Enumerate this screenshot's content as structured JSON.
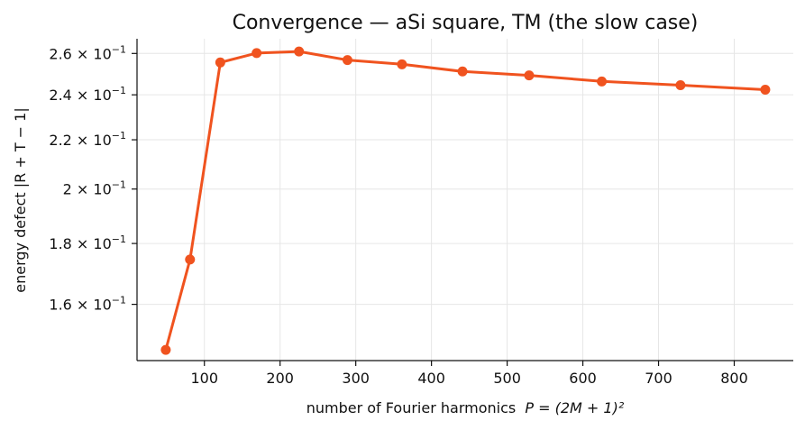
{
  "chart_data": {
    "type": "line",
    "title": "Convergence — aSi square, TM (the slow case)",
    "xlabel_prefix": "number of Fourier harmonics  ",
    "xlabel_math": "P = (2M + 1)²",
    "ylabel": "energy defect  |R + T − 1|",
    "y_scale": "log",
    "grid": true,
    "xlim": [
      11,
      878
    ],
    "ylim": [
      0.1435,
      0.2675
    ],
    "x_ticks": [
      100,
      200,
      300,
      400,
      500,
      600,
      700,
      800
    ],
    "x_tick_labels": [
      "100",
      "200",
      "300",
      "400",
      "500",
      "600",
      "700",
      "800"
    ],
    "y_ticks": [
      0.16,
      0.18,
      0.2,
      0.22,
      0.24,
      0.26
    ],
    "y_tick_labels": [
      {
        "mant": "1.6",
        "exp": "−1"
      },
      {
        "mant": "1.8",
        "exp": "−1"
      },
      {
        "mant": "2",
        "exp": "−1"
      },
      {
        "mant": "2.2",
        "exp": "−1"
      },
      {
        "mant": "2.4",
        "exp": "−1"
      },
      {
        "mant": "2.6",
        "exp": "−1"
      }
    ],
    "series": [
      {
        "color": "#f0531f",
        "x": [
          49,
          81,
          121,
          169,
          225,
          289,
          361,
          441,
          529,
          625,
          729,
          841
        ],
        "y": [
          0.1465,
          0.1745,
          0.2555,
          0.2602,
          0.261,
          0.2567,
          0.2546,
          0.2511,
          0.2492,
          0.2463,
          0.2445,
          0.2424
        ]
      }
    ]
  }
}
